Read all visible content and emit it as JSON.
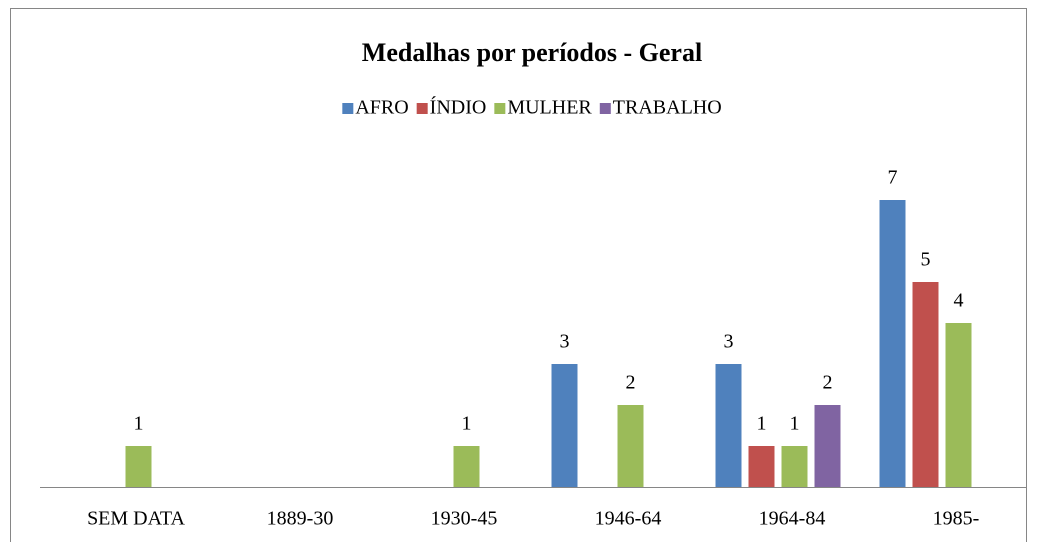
{
  "chart_data": {
    "type": "bar",
    "title": "Medalhas por períodos - Geral",
    "categories": [
      "SEM DATA",
      "1889-30",
      "1930-45",
      "1946-64",
      "1964-84",
      "1985-"
    ],
    "series": [
      {
        "name": "AFRO",
        "color": "#4f81bd",
        "values": [
          null,
          null,
          null,
          3,
          3,
          7
        ]
      },
      {
        "name": "ÍNDIO",
        "color": "#c0504d",
        "values": [
          null,
          null,
          null,
          null,
          1,
          5
        ]
      },
      {
        "name": "MULHER",
        "color": "#9bbb59",
        "values": [
          1,
          null,
          1,
          2,
          1,
          4
        ]
      },
      {
        "name": "TRABALHO",
        "color": "#8064a2",
        "values": [
          null,
          null,
          null,
          null,
          2,
          null
        ]
      }
    ],
    "ylim": [
      0,
      8
    ],
    "legend": "top"
  }
}
